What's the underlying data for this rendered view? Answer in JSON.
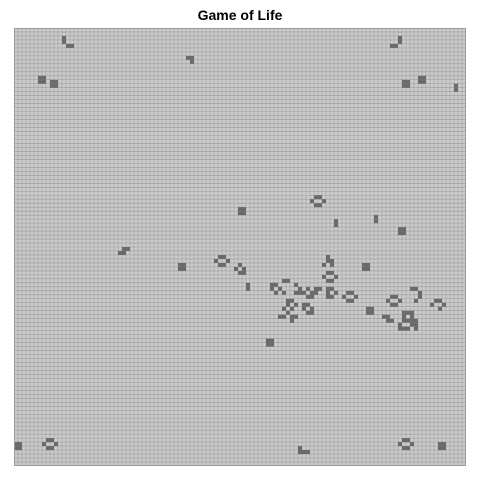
{
  "title": "Game of Life",
  "colors": {
    "background": "#cccccc",
    "grid_line": "#9a9a9a",
    "alive": "#6a6a6a",
    "page": "#ffffff",
    "title": "#000000"
  },
  "board": {
    "cols": 113,
    "rows": 110,
    "alive_cells": [
      [
        12,
        2
      ],
      [
        12,
        3
      ],
      [
        13,
        4
      ],
      [
        14,
        4
      ],
      [
        96,
        2
      ],
      [
        96,
        3
      ],
      [
        94,
        4
      ],
      [
        95,
        4
      ],
      [
        43,
        7
      ],
      [
        44,
        7
      ],
      [
        44,
        8
      ],
      [
        6,
        12
      ],
      [
        7,
        12
      ],
      [
        6,
        13
      ],
      [
        7,
        13
      ],
      [
        9,
        13
      ],
      [
        10,
        13
      ],
      [
        9,
        14
      ],
      [
        10,
        14
      ],
      [
        101,
        12
      ],
      [
        102,
        12
      ],
      [
        101,
        13
      ],
      [
        102,
        13
      ],
      [
        97,
        13
      ],
      [
        98,
        13
      ],
      [
        97,
        14
      ],
      [
        98,
        14
      ],
      [
        110,
        14
      ],
      [
        110,
        15
      ],
      [
        75,
        42
      ],
      [
        76,
        42
      ],
      [
        74,
        43
      ],
      [
        77,
        43
      ],
      [
        75,
        44
      ],
      [
        76,
        44
      ],
      [
        56,
        45
      ],
      [
        57,
        45
      ],
      [
        56,
        46
      ],
      [
        57,
        46
      ],
      [
        80,
        48
      ],
      [
        80,
        49
      ],
      [
        90,
        47
      ],
      [
        90,
        48
      ],
      [
        96,
        50
      ],
      [
        97,
        50
      ],
      [
        96,
        51
      ],
      [
        97,
        51
      ],
      [
        27,
        55
      ],
      [
        28,
        55
      ],
      [
        26,
        56
      ],
      [
        27,
        56
      ],
      [
        51,
        57
      ],
      [
        52,
        57
      ],
      [
        50,
        58
      ],
      [
        53,
        58
      ],
      [
        51,
        59
      ],
      [
        52,
        59
      ],
      [
        41,
        59
      ],
      [
        42,
        59
      ],
      [
        41,
        60
      ],
      [
        42,
        60
      ],
      [
        78,
        57
      ],
      [
        79,
        58
      ],
      [
        78,
        58
      ],
      [
        77,
        59
      ],
      [
        79,
        59
      ],
      [
        56,
        59
      ],
      [
        57,
        60
      ],
      [
        55,
        60
      ],
      [
        56,
        61
      ],
      [
        57,
        61
      ],
      [
        87,
        59
      ],
      [
        88,
        59
      ],
      [
        87,
        60
      ],
      [
        88,
        60
      ],
      [
        78,
        61
      ],
      [
        79,
        61
      ],
      [
        77,
        62
      ],
      [
        80,
        62
      ],
      [
        78,
        63
      ],
      [
        79,
        63
      ],
      [
        58,
        64
      ],
      [
        58,
        65
      ],
      [
        64,
        64
      ],
      [
        65,
        64
      ],
      [
        64,
        65
      ],
      [
        66,
        65
      ],
      [
        65,
        66
      ],
      [
        67,
        66
      ],
      [
        67,
        63
      ],
      [
        68,
        63
      ],
      [
        70,
        64
      ],
      [
        71,
        65
      ],
      [
        72,
        66
      ],
      [
        71,
        66
      ],
      [
        70,
        66
      ],
      [
        73,
        65
      ],
      [
        74,
        66
      ],
      [
        74,
        67
      ],
      [
        73,
        67
      ],
      [
        75,
        65
      ],
      [
        76,
        65
      ],
      [
        75,
        66
      ],
      [
        78,
        65
      ],
      [
        79,
        65
      ],
      [
        78,
        66
      ],
      [
        80,
        66
      ],
      [
        78,
        67
      ],
      [
        79,
        67
      ],
      [
        83,
        66
      ],
      [
        84,
        66
      ],
      [
        82,
        67
      ],
      [
        85,
        67
      ],
      [
        83,
        68
      ],
      [
        84,
        68
      ],
      [
        99,
        65
      ],
      [
        100,
        65
      ],
      [
        101,
        66
      ],
      [
        101,
        67
      ],
      [
        100,
        68
      ],
      [
        94,
        67
      ],
      [
        95,
        67
      ],
      [
        93,
        68
      ],
      [
        96,
        68
      ],
      [
        94,
        69
      ],
      [
        95,
        69
      ],
      [
        105,
        68
      ],
      [
        106,
        68
      ],
      [
        104,
        69
      ],
      [
        107,
        69
      ],
      [
        106,
        70
      ],
      [
        68,
        68
      ],
      [
        69,
        68
      ],
      [
        68,
        69
      ],
      [
        70,
        69
      ],
      [
        69,
        70
      ],
      [
        72,
        69
      ],
      [
        73,
        69
      ],
      [
        72,
        70
      ],
      [
        74,
        70
      ],
      [
        73,
        71
      ],
      [
        74,
        71
      ],
      [
        67,
        70
      ],
      [
        68,
        71
      ],
      [
        67,
        72
      ],
      [
        66,
        72
      ],
      [
        69,
        72
      ],
      [
        70,
        72
      ],
      [
        69,
        73
      ],
      [
        88,
        70
      ],
      [
        89,
        70
      ],
      [
        88,
        71
      ],
      [
        89,
        71
      ],
      [
        92,
        72
      ],
      [
        93,
        72
      ],
      [
        93,
        73
      ],
      [
        94,
        73
      ],
      [
        97,
        71
      ],
      [
        98,
        71
      ],
      [
        99,
        71
      ],
      [
        97,
        72
      ],
      [
        99,
        72
      ],
      [
        97,
        73
      ],
      [
        98,
        73
      ],
      [
        99,
        73
      ],
      [
        96,
        74
      ],
      [
        96,
        75
      ],
      [
        97,
        75
      ],
      [
        98,
        75
      ],
      [
        99,
        74
      ],
      [
        100,
        73
      ],
      [
        100,
        74
      ],
      [
        100,
        75
      ],
      [
        63,
        78
      ],
      [
        64,
        78
      ],
      [
        63,
        79
      ],
      [
        64,
        79
      ],
      [
        0,
        104
      ],
      [
        1,
        104
      ],
      [
        0,
        105
      ],
      [
        1,
        105
      ],
      [
        8,
        103
      ],
      [
        9,
        103
      ],
      [
        7,
        104
      ],
      [
        10,
        104
      ],
      [
        8,
        105
      ],
      [
        9,
        105
      ],
      [
        97,
        103
      ],
      [
        98,
        103
      ],
      [
        96,
        104
      ],
      [
        99,
        104
      ],
      [
        97,
        105
      ],
      [
        98,
        105
      ],
      [
        106,
        104
      ],
      [
        107,
        104
      ],
      [
        106,
        105
      ],
      [
        107,
        105
      ],
      [
        71,
        105
      ],
      [
        72,
        106
      ],
      [
        71,
        106
      ],
      [
        73,
        106
      ]
    ]
  }
}
